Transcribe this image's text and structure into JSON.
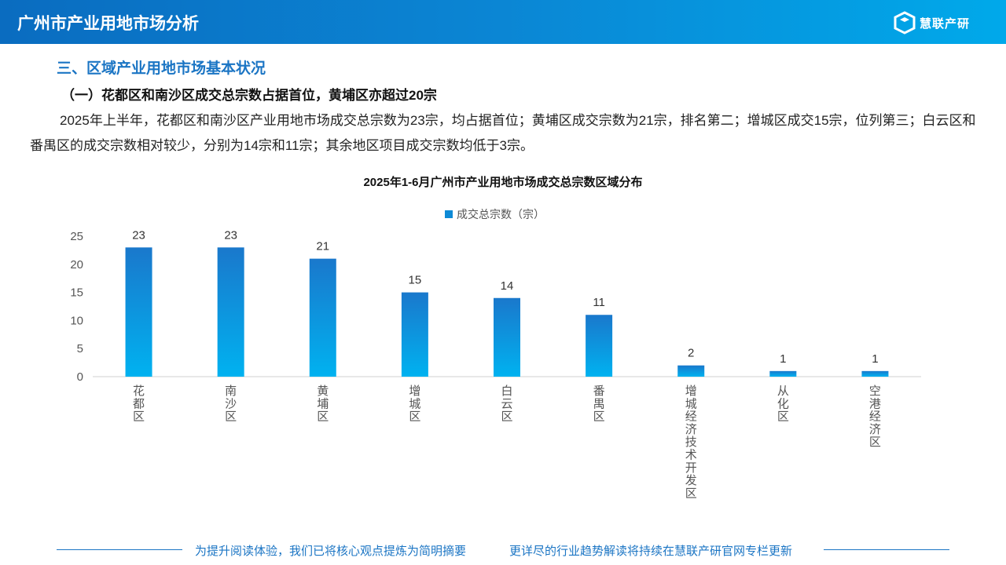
{
  "header": {
    "title": "广州市产业用地市场分析",
    "logo_text": "慧联产研"
  },
  "section_title": "三、区域产业用地市场基本状况",
  "subsection_title": "（一）花都区和南沙区成交总宗数占据首位，黄埔区亦超过20宗",
  "paragraph": "2025年上半年，花都区和南沙区产业用地市场成交总宗数为23宗，均占据首位；黄埔区成交宗数为21宗，排名第二；增城区成交15宗，位列第三；白云区和番禺区的成交宗数相对较少，分别为14宗和11宗；其余地区项目成交宗数均低于3宗。",
  "chart_data": {
    "type": "bar",
    "title": "2025年1-6月广州市产业用地市场成交总宗数区域分布",
    "legend": "成交总宗数（宗）",
    "legend_position": "top-center",
    "categories": [
      "花都区",
      "南沙区",
      "黄埔区",
      "增城区",
      "白云区",
      "番禺区",
      "增城经济技术开发区",
      "从化区",
      "空港经济区"
    ],
    "values": [
      23,
      23,
      21,
      15,
      14,
      11,
      2,
      1,
      1
    ],
    "yticks": [
      "0",
      "5",
      "10",
      "15",
      "20",
      "25"
    ],
    "ylim": [
      0,
      25
    ],
    "grid": false,
    "color_top": "#1a78cc",
    "color_bottom": "#00b2f0"
  },
  "footer": {
    "left": "为提升阅读体验，我们已将核心观点提炼为简明摘要",
    "right": "更详尽的行业趋势解读将持续在慧联产研官网专栏更新"
  }
}
